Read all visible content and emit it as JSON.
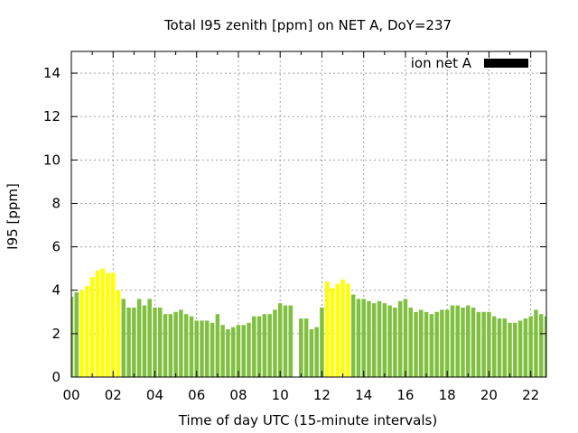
{
  "chart_data": {
    "type": "bar",
    "title": "Total I95 zenith [ppm] on NET A, DoY=237",
    "xlabel": "Time of day UTC (15-minute intervals)",
    "ylabel": "I95 [ppm]",
    "xlim": [
      0,
      22.75
    ],
    "ylim": [
      0,
      15
    ],
    "x_ticks": [
      "00",
      "02",
      "04",
      "06",
      "08",
      "10",
      "12",
      "14",
      "16",
      "18",
      "20",
      "22"
    ],
    "y_ticks": [
      "0",
      "2",
      "4",
      "6",
      "8",
      "10",
      "12",
      "14"
    ],
    "x_tick_values": [
      0,
      2,
      4,
      6,
      8,
      10,
      12,
      14,
      16,
      18,
      20,
      22
    ],
    "y_tick_values": [
      0,
      2,
      4,
      6,
      8,
      10,
      12,
      14
    ],
    "bar_interval_hours": 0.25,
    "grid": true,
    "legend": {
      "position": "top-right",
      "label": "ion net A",
      "color": "#000000"
    },
    "colors": {
      "normal": "#80c040",
      "high": "#ffff00"
    },
    "highlight_threshold": 4.0,
    "values": [
      3.7,
      3.9,
      4.0,
      4.2,
      4.6,
      4.9,
      5.0,
      4.8,
      4.8,
      4.0,
      3.6,
      3.2,
      3.2,
      3.6,
      3.3,
      3.6,
      3.2,
      3.2,
      2.9,
      2.9,
      3.0,
      3.1,
      2.9,
      2.8,
      2.6,
      2.6,
      2.6,
      2.5,
      2.9,
      2.4,
      2.2,
      2.3,
      2.4,
      2.4,
      2.5,
      2.8,
      2.8,
      2.9,
      2.9,
      3.1,
      3.4,
      3.3,
      3.3,
      null,
      2.7,
      2.7,
      2.2,
      2.3,
      3.2,
      4.4,
      4.1,
      4.3,
      4.5,
      4.3,
      3.8,
      3.6,
      3.6,
      3.5,
      3.4,
      3.5,
      3.4,
      3.3,
      3.2,
      3.5,
      3.6,
      3.2,
      3.0,
      3.1,
      3.0,
      2.9,
      3.0,
      3.1,
      3.1,
      3.3,
      3.3,
      3.2,
      3.3,
      3.2,
      3.0,
      3.0,
      3.0,
      2.8,
      2.7,
      2.7,
      2.5,
      2.5,
      2.6,
      2.7,
      2.8,
      3.1,
      2.9,
      2.8,
      3.0
    ]
  }
}
